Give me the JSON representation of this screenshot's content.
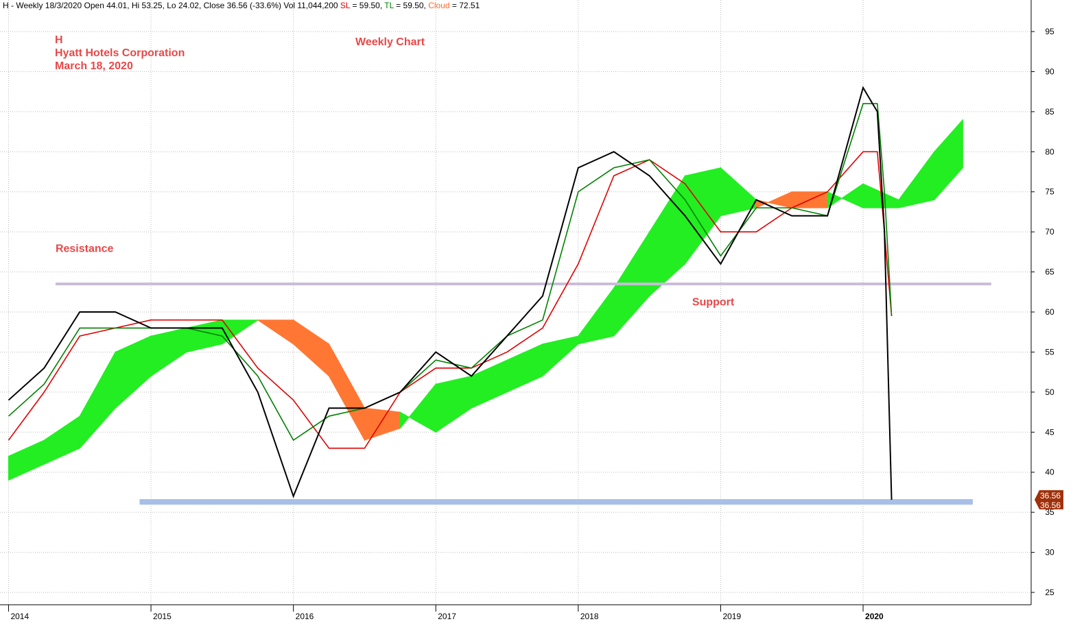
{
  "chart_data": {
    "type": "ichimoku",
    "header": [
      {
        "text": "H - Weekly 18/3/2020 Open 44.01, Hi 53.25, Lo 24.02, Close 36.56 (-33.6%) Vol 11,044,200 ",
        "color": "#000000"
      },
      {
        "text": "SL",
        "color": "#e00000"
      },
      {
        "text": " = 59.50, ",
        "color": "#000000"
      },
      {
        "text": "TL",
        "color": "#008000"
      },
      {
        "text": " = 59.50, ",
        "color": "#000000"
      },
      {
        "text": "Cloud",
        "color": "#ff6a2a"
      },
      {
        "text": " = 72.51",
        "color": "#000000"
      }
    ],
    "title_lines": [
      "H",
      "Hyatt Hotels Corporation",
      "March 18, 2020"
    ],
    "subtitle": "Weekly Chart",
    "annotations": [
      {
        "text": "Resistance",
        "x": 2014.33,
        "y": 67.5
      },
      {
        "text": "Support",
        "x": 2018.8,
        "y": 60.8
      }
    ],
    "levels": [
      {
        "value": 63.5,
        "x0": 2014.33,
        "x1": 2020.9,
        "color": "#c8bcd8"
      },
      {
        "value": 36.3,
        "x0": 2014.92,
        "x1": 2020.77,
        "color": "#a8bfe8"
      }
    ],
    "last_price_label": [
      "36.56",
      "36.56"
    ],
    "last_price": 36.56,
    "x": [
      2014.0,
      2014.25,
      2014.5,
      2014.75,
      2015.0,
      2015.25,
      2015.5,
      2015.75,
      2016.0,
      2016.25,
      2016.5,
      2016.75,
      2017.0,
      2017.25,
      2017.5,
      2017.75,
      2018.0,
      2018.25,
      2018.5,
      2018.75,
      2019.0,
      2019.25,
      2019.5,
      2019.75,
      2020.0,
      2020.1,
      2020.15,
      2020.2
    ],
    "series": [
      {
        "name": "Close",
        "color": "#000000",
        "values": [
          49,
          53,
          60,
          60,
          58,
          58,
          58,
          50,
          37,
          48,
          48,
          50,
          55,
          52,
          57,
          62,
          78,
          80,
          77,
          72,
          66,
          74,
          72,
          72,
          88,
          85,
          70,
          36.56
        ]
      },
      {
        "name": "TL",
        "color": "#008000",
        "values": [
          47,
          51,
          58,
          58,
          58,
          58,
          57,
          52,
          44,
          47,
          48,
          50,
          54,
          53,
          57,
          59,
          75,
          78,
          79,
          74,
          67,
          73,
          73,
          72,
          86,
          86,
          75,
          59.5
        ]
      },
      {
        "name": "SL",
        "color": "#e00000",
        "values": [
          44,
          50,
          57,
          58,
          59,
          59,
          59,
          53,
          49,
          43,
          43,
          50,
          53,
          53,
          55,
          58,
          66,
          77,
          79,
          76,
          70,
          70,
          73,
          75,
          80,
          80,
          70,
          59.5
        ]
      }
    ],
    "cloud": {
      "x": [
        2014.0,
        2014.25,
        2014.5,
        2014.75,
        2015.0,
        2015.25,
        2015.5,
        2015.75,
        2016.0,
        2016.25,
        2016.5,
        2016.75,
        2017.0,
        2017.25,
        2017.5,
        2017.75,
        2018.0,
        2018.25,
        2018.5,
        2018.75,
        2019.0,
        2019.25,
        2019.5,
        2019.75,
        2020.0,
        2020.25,
        2020.5,
        2020.7
      ],
      "span_a": [
        42,
        44,
        47,
        55,
        57,
        58,
        59,
        59,
        56,
        52,
        44,
        45.5,
        51,
        52,
        54,
        56,
        57,
        63,
        70,
        77,
        78,
        74,
        73,
        73,
        76,
        74,
        80,
        84
      ],
      "span_b": [
        39,
        41,
        43,
        48,
        52,
        55,
        56,
        59,
        59,
        56,
        48,
        47.5,
        45,
        48,
        50,
        52,
        56,
        57,
        62,
        66,
        72,
        73,
        75,
        75,
        73,
        73,
        74,
        78
      ],
      "up_color": "#22ee22",
      "down_color": "#ff7733"
    },
    "xlim": [
      2013.94,
      2021.18
    ],
    "xticks": [
      2014,
      2015,
      2016,
      2017,
      2018,
      2019,
      2020
    ],
    "ylim": [
      23.46,
      98.94
    ],
    "yticks": [
      25,
      30,
      35,
      40,
      45,
      50,
      55,
      60,
      65,
      70,
      75,
      80,
      85,
      90,
      95
    ],
    "grid": true
  }
}
